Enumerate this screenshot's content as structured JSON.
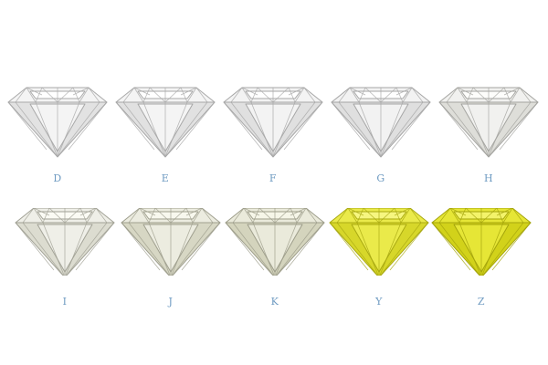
{
  "diamonds": [
    {
      "label": "D",
      "fill": "#f4f4f4",
      "table": "#ffffff",
      "pavilion": "#e2e2e2",
      "stroke": "#a9a9a9"
    },
    {
      "label": "E",
      "fill": "#f4f4f4",
      "table": "#ffffff",
      "pavilion": "#e1e1e1",
      "stroke": "#a8a8a8"
    },
    {
      "label": "F",
      "fill": "#f3f3f3",
      "table": "#ffffff",
      "pavilion": "#e0e0e0",
      "stroke": "#a7a7a7"
    },
    {
      "label": "G",
      "fill": "#f2f2f2",
      "table": "#fefefe",
      "pavilion": "#dfdfdf",
      "stroke": "#a6a6a6"
    },
    {
      "label": "H",
      "fill": "#f1f1ef",
      "table": "#fdfdfb",
      "pavilion": "#deded9",
      "stroke": "#a4a4a0"
    },
    {
      "label": "I",
      "fill": "#efefe8",
      "table": "#fbfbf4",
      "pavilion": "#dcdcd0",
      "stroke": "#a2a296"
    },
    {
      "label": "J",
      "fill": "#ecece0",
      "table": "#f8f8ee",
      "pavilion": "#d7d7c4",
      "stroke": "#9f9f8e"
    },
    {
      "label": "K",
      "fill": "#eaeadb",
      "table": "#f6f6e8",
      "pavilion": "#d4d4bd",
      "stroke": "#9d9d8a"
    },
    {
      "label": "Y",
      "fill": "#eaea4a",
      "table": "#f6f680",
      "pavilion": "#d7d72a",
      "stroke": "#a9a912"
    },
    {
      "label": "Z",
      "fill": "#e6e636",
      "table": "#f3f36a",
      "pavilion": "#d2d21a",
      "stroke": "#a4a40c"
    }
  ]
}
